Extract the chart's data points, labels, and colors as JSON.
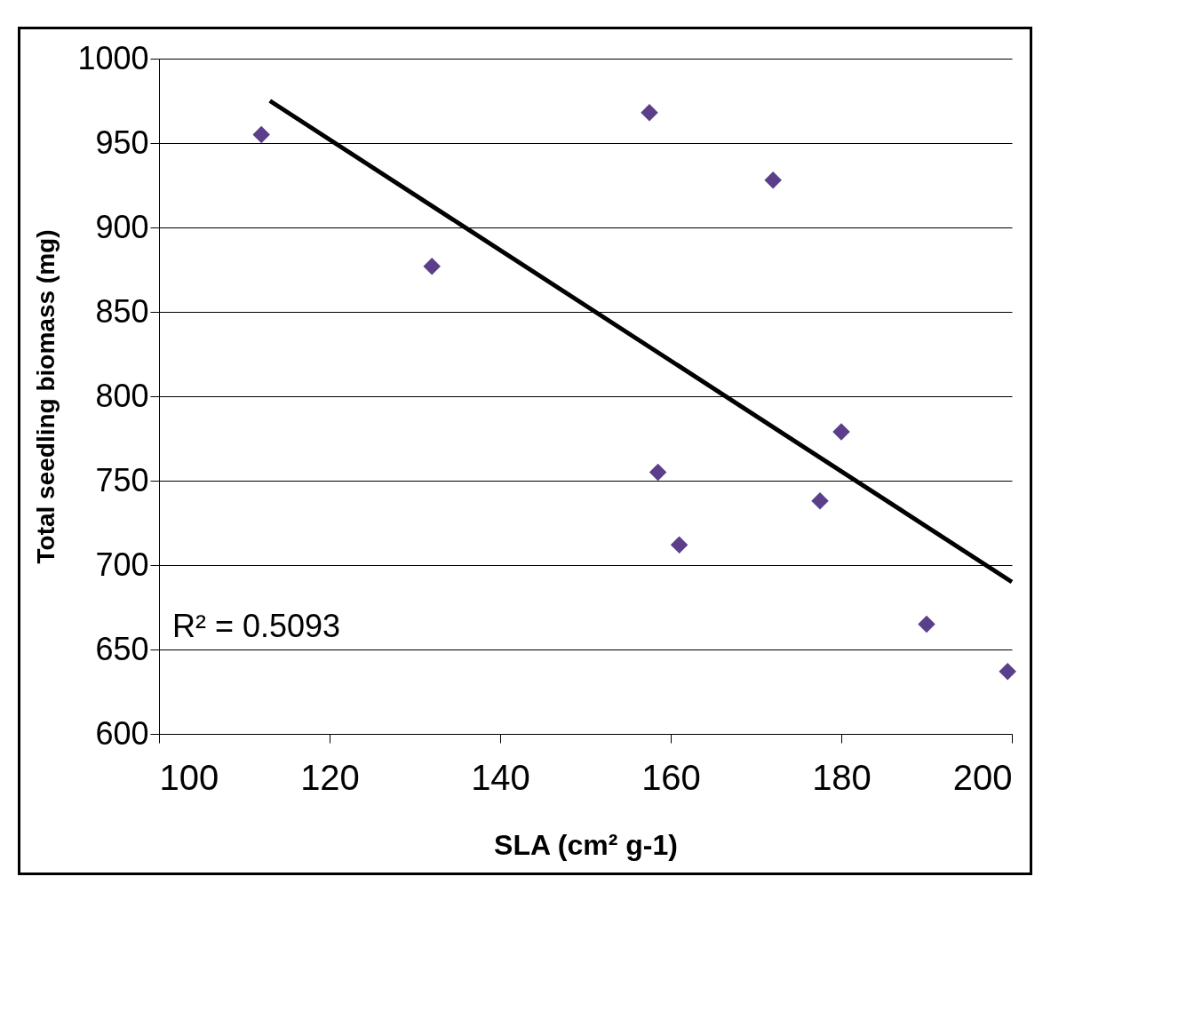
{
  "chart_data": {
    "type": "scatter",
    "xlabel": "SLA (cm² g-1)",
    "ylabel": "Total seedling biomass (mg)",
    "annotations": [
      "R² = 0.5093"
    ],
    "series": [
      {
        "color": "#5b3f8a",
        "marker": "diamond",
        "x": [
          112,
          132,
          157.5,
          158.5,
          161,
          172,
          177.5,
          180,
          190,
          199.5
        ],
        "values": [
          955,
          877,
          968,
          755,
          712,
          928,
          738,
          779,
          665,
          637
        ]
      },
      {
        "type": "line",
        "color": "#000000",
        "x": [
          113,
          200
        ],
        "values": [
          975,
          690
        ]
      }
    ],
    "xlim": [
      100,
      200
    ],
    "xticks": [
      100,
      120,
      140,
      160,
      180,
      200
    ],
    "ylim": [
      600,
      1000
    ],
    "yticks": [
      600,
      650,
      700,
      750,
      800,
      850,
      900,
      950,
      1000
    ],
    "grid": "y",
    "line_style": "solid"
  }
}
